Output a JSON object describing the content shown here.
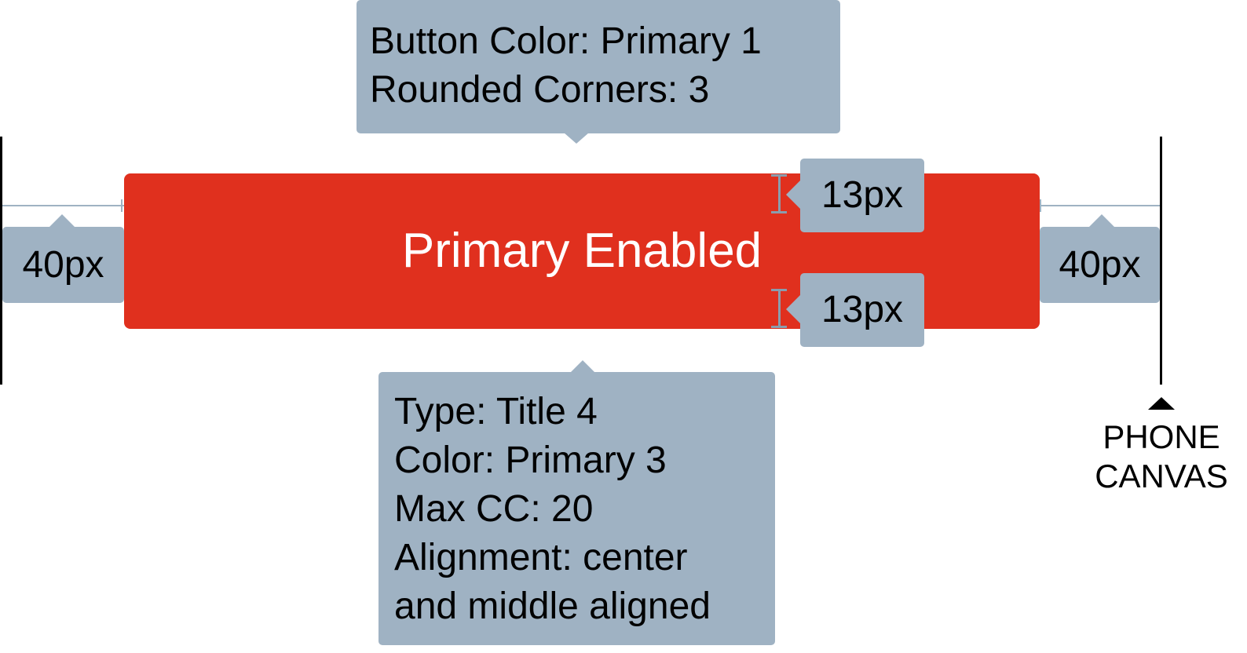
{
  "colors": {
    "button_fill": "#e0301e",
    "button_text": "#ffffff",
    "callout_fill": "#9fb2c3",
    "edge_line": "#000000"
  },
  "button": {
    "label": "Primary Enabled"
  },
  "button_spec": {
    "lines": [
      "Button Color: Primary 1",
      "Rounded Corners: 3"
    ]
  },
  "text_spec": {
    "lines": [
      "Type: Title 4",
      "Color: Primary 3",
      "Max CC: 20",
      "Alignment: center",
      "and middle aligned"
    ]
  },
  "padding_top": {
    "label": "13px"
  },
  "padding_bottom": {
    "label": "13px"
  },
  "margin_left": {
    "label": "40px"
  },
  "margin_right": {
    "label": "40px"
  },
  "phone_canvas": {
    "line1": "PHONE",
    "line2": "CANVAS"
  }
}
